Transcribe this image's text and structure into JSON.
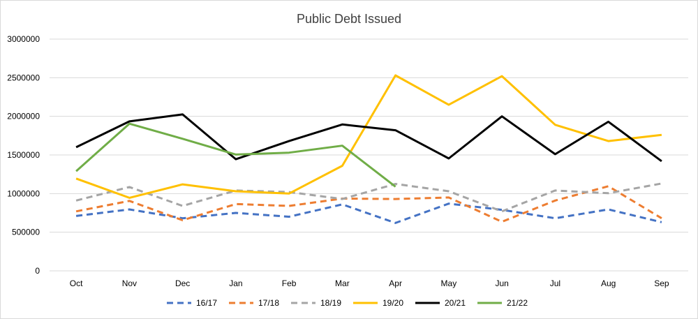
{
  "chart_data": {
    "type": "line",
    "title": "Public Debt Issued",
    "xlabel": "",
    "ylabel": "",
    "categories": [
      "Oct",
      "Nov",
      "Dec",
      "Jan",
      "Feb",
      "Mar",
      "Apr",
      "May",
      "Jun",
      "Jul",
      "Aug",
      "Sep"
    ],
    "ylim": [
      0,
      3000000
    ],
    "yticks": [
      "0",
      "500000",
      "1000000",
      "1500000",
      "2000000",
      "2500000",
      "3000000"
    ],
    "grid": true,
    "legend_position": "bottom",
    "series": [
      {
        "name": "16/17",
        "color": "#4472c4",
        "dash": "dashed",
        "values": [
          710000,
          795000,
          680000,
          750000,
          700000,
          860000,
          620000,
          870000,
          790000,
          680000,
          795000,
          630000
        ]
      },
      {
        "name": "17/18",
        "color": "#ed7d31",
        "dash": "dashed",
        "values": [
          770000,
          905000,
          655000,
          865000,
          840000,
          935000,
          930000,
          950000,
          635000,
          910000,
          1095000,
          680000
        ]
      },
      {
        "name": "18/19",
        "color": "#a5a5a5",
        "dash": "dashed",
        "values": [
          910000,
          1085000,
          840000,
          1040000,
          1020000,
          930000,
          1125000,
          1030000,
          770000,
          1040000,
          1005000,
          1130000
        ]
      },
      {
        "name": "19/20",
        "color": "#ffc000",
        "dash": "solid",
        "values": [
          1195000,
          945000,
          1120000,
          1030000,
          1000000,
          1360000,
          2530000,
          2150000,
          2520000,
          1890000,
          1680000,
          1760000
        ]
      },
      {
        "name": "20/21",
        "color": "#000000",
        "dash": "solid",
        "values": [
          1600000,
          1935000,
          2025000,
          1445000,
          1680000,
          1895000,
          1820000,
          1455000,
          2000000,
          1510000,
          1930000,
          1420000
        ]
      },
      {
        "name": "21/22",
        "color": "#70ad47",
        "dash": "solid",
        "values": [
          1290000,
          1905000,
          1710000,
          1505000,
          1530000,
          1620000,
          1090000,
          null,
          null,
          null,
          null,
          null
        ]
      }
    ]
  }
}
